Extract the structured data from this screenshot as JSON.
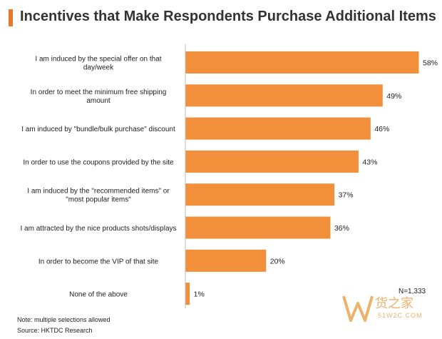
{
  "title": "Incentives that Make Respondents Purchase Additional Items",
  "note": "Note: multiple selections allowed",
  "source": "Source: HKTDC Research",
  "sample_size": "N=1,333",
  "watermark": {
    "main": "货之家",
    "sub": "51W2C.COM"
  },
  "colors": {
    "bar": "#f18f3a",
    "accent": "#e8792b",
    "axis": "#bdbdbd"
  },
  "chart_data": {
    "type": "bar",
    "orientation": "horizontal",
    "categories": [
      [
        "I am induced by the special offer on that",
        "day/week"
      ],
      [
        "In order to meet the minimum free shipping",
        "amount"
      ],
      [
        "I am induced by \"bundle/bulk purchase\" discount"
      ],
      [
        "In order to use the coupons provided by the site"
      ],
      [
        "I am induced by the \"recommended items\" or",
        "\"most popular items\""
      ],
      [
        "I am attracted by the nice products shots/displays"
      ],
      [
        "In order to become the VIP of that site"
      ],
      [
        "None of the above"
      ]
    ],
    "values": [
      58,
      49,
      46,
      43,
      37,
      36,
      20,
      1
    ],
    "value_labels": [
      "58%",
      "49%",
      "46%",
      "43%",
      "37%",
      "36%",
      "20%",
      "1%"
    ],
    "xlim": [
      0,
      100
    ]
  }
}
